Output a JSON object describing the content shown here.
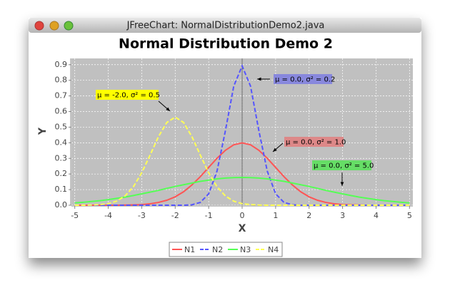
{
  "window": {
    "title": "JFreeChart: NormalDistributionDemo2.java"
  },
  "chart_data": {
    "type": "line",
    "title": "Normal Distribution Demo 2",
    "x_label": "X",
    "y_label": "Y",
    "x": [
      -5,
      -4.75,
      -4.5,
      -4.25,
      -4,
      -3.75,
      -3.5,
      -3.25,
      -3,
      -2.75,
      -2.5,
      -2.25,
      -2,
      -1.75,
      -1.5,
      -1.25,
      -1,
      -0.75,
      -0.5,
      -0.25,
      0,
      0.25,
      0.5,
      0.75,
      1,
      1.25,
      1.5,
      1.75,
      2,
      2.25,
      2.5,
      2.75,
      3,
      3.25,
      3.5,
      3.75,
      4,
      4.25,
      4.5,
      4.75,
      5
    ],
    "series": [
      {
        "name": "N1",
        "color": "#ff5555",
        "dashed": false,
        "values": [
          0,
          0,
          0,
          0,
          0,
          0,
          0.001,
          0.002,
          0.004,
          0.009,
          0.018,
          0.032,
          0.054,
          0.086,
          0.13,
          0.183,
          0.242,
          0.301,
          0.352,
          0.387,
          0.399,
          0.387,
          0.352,
          0.301,
          0.242,
          0.183,
          0.13,
          0.086,
          0.054,
          0.032,
          0.018,
          0.009,
          0.004,
          0.002,
          0.001,
          0,
          0,
          0,
          0,
          0,
          0
        ]
      },
      {
        "name": "N2",
        "color": "#5555ff",
        "dashed": true,
        "values": [
          0,
          0,
          0,
          0,
          0,
          0,
          0,
          0,
          0,
          0,
          0,
          0,
          0,
          0,
          0.003,
          0.018,
          0.073,
          0.219,
          0.477,
          0.763,
          0.892,
          0.763,
          0.477,
          0.219,
          0.073,
          0.018,
          0.003,
          0,
          0,
          0,
          0,
          0,
          0,
          0,
          0,
          0,
          0,
          0,
          0,
          0,
          0
        ]
      },
      {
        "name": "N3",
        "color": "#55ff55",
        "dashed": false,
        "values": [
          0.015,
          0.019,
          0.024,
          0.029,
          0.036,
          0.044,
          0.052,
          0.062,
          0.073,
          0.084,
          0.095,
          0.108,
          0.12,
          0.131,
          0.142,
          0.153,
          0.161,
          0.169,
          0.174,
          0.177,
          0.178,
          0.177,
          0.174,
          0.169,
          0.161,
          0.153,
          0.142,
          0.131,
          0.12,
          0.108,
          0.095,
          0.084,
          0.073,
          0.062,
          0.052,
          0.044,
          0.036,
          0.029,
          0.024,
          0.019,
          0.015
        ]
      },
      {
        "name": "N4",
        "color": "#ffff55",
        "dashed": true,
        "values": [
          0,
          0,
          0.001,
          0.004,
          0.01,
          0.026,
          0.059,
          0.118,
          0.208,
          0.321,
          0.439,
          0.53,
          0.564,
          0.53,
          0.439,
          0.321,
          0.208,
          0.118,
          0.059,
          0.026,
          0.01,
          0.004,
          0.001,
          0,
          0,
          0,
          0,
          0,
          0,
          0,
          0,
          0,
          0,
          0,
          0,
          0,
          0,
          0,
          0,
          0,
          0
        ]
      }
    ],
    "xlim": [
      -5.1,
      5.1
    ],
    "ylim": [
      0,
      0.94
    ],
    "xticks": [
      -5,
      -4,
      -3,
      -2,
      -1,
      0,
      1,
      2,
      3,
      4,
      5
    ],
    "yticks": [
      {
        "value": 0,
        "label": "0.0"
      },
      0.1,
      0.2,
      0.3,
      0.4,
      0.5,
      0.6,
      0.7,
      0.8,
      0.9
    ],
    "grid": true,
    "legend": "bottom",
    "annotations": [
      {
        "text": "μ = 0.0, σ² = 0.2",
        "color": "#8888dd"
      },
      {
        "text": "μ = -2.0, σ² = 0.5",
        "color": "#ffff00"
      },
      {
        "text": "μ = 0.0, σ² = 1.0",
        "color": "#dd8888"
      },
      {
        "text": "μ = 0.0, σ² = 5.0",
        "color": "#66dd66"
      }
    ]
  }
}
